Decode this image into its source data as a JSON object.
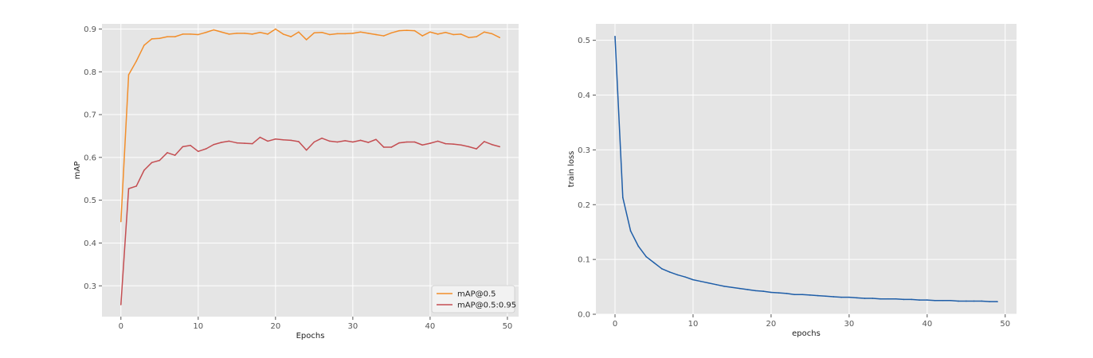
{
  "chart_data": [
    {
      "type": "line",
      "title": "",
      "xlabel": "Epochs",
      "ylabel": "mAP",
      "xlim": [
        -2.45,
        51.45
      ],
      "ylim": [
        0.228,
        0.912
      ],
      "xticks": [
        0,
        10,
        20,
        30,
        40,
        50
      ],
      "yticks": [
        0.3,
        0.4,
        0.5,
        0.6,
        0.7,
        0.8,
        0.9
      ],
      "grid": true,
      "legend_position": "lower-right",
      "series": [
        {
          "name": "mAP@0.5",
          "color": "#f28e2b",
          "x": [
            0,
            1,
            2,
            3,
            4,
            5,
            6,
            7,
            8,
            9,
            10,
            11,
            12,
            13,
            14,
            15,
            16,
            17,
            18,
            19,
            20,
            21,
            22,
            23,
            24,
            25,
            26,
            27,
            28,
            29,
            30,
            31,
            32,
            33,
            34,
            35,
            36,
            37,
            38,
            39,
            40,
            41,
            42,
            43,
            44,
            45,
            46,
            47,
            48,
            49
          ],
          "y": [
            0.45,
            0.793,
            0.825,
            0.862,
            0.877,
            0.878,
            0.882,
            0.882,
            0.888,
            0.888,
            0.887,
            0.892,
            0.898,
            0.893,
            0.888,
            0.89,
            0.89,
            0.888,
            0.892,
            0.888,
            0.9,
            0.888,
            0.882,
            0.893,
            0.875,
            0.891,
            0.892,
            0.887,
            0.889,
            0.889,
            0.89,
            0.893,
            0.89,
            0.887,
            0.884,
            0.891,
            0.896,
            0.897,
            0.896,
            0.884,
            0.893,
            0.888,
            0.892,
            0.887,
            0.888,
            0.88,
            0.882,
            0.893,
            0.889,
            0.88
          ]
        },
        {
          "name": "mAP@0.5:0.95",
          "color": "#c44e52",
          "x": [
            0,
            1,
            2,
            3,
            4,
            5,
            6,
            7,
            8,
            9,
            10,
            11,
            12,
            13,
            14,
            15,
            16,
            17,
            18,
            19,
            20,
            21,
            22,
            23,
            24,
            25,
            26,
            27,
            28,
            29,
            30,
            31,
            32,
            33,
            34,
            35,
            36,
            37,
            38,
            39,
            40,
            41,
            42,
            43,
            44,
            45,
            46,
            47,
            48,
            49
          ],
          "y": [
            0.256,
            0.527,
            0.533,
            0.57,
            0.588,
            0.593,
            0.611,
            0.605,
            0.625,
            0.628,
            0.614,
            0.62,
            0.63,
            0.635,
            0.638,
            0.634,
            0.633,
            0.632,
            0.647,
            0.638,
            0.643,
            0.641,
            0.64,
            0.637,
            0.617,
            0.636,
            0.645,
            0.638,
            0.636,
            0.639,
            0.636,
            0.64,
            0.635,
            0.642,
            0.624,
            0.624,
            0.634,
            0.636,
            0.636,
            0.629,
            0.633,
            0.638,
            0.632,
            0.631,
            0.629,
            0.625,
            0.62,
            0.637,
            0.63,
            0.625
          ]
        }
      ]
    },
    {
      "type": "line",
      "title": "",
      "xlabel": "epochs",
      "ylabel": "train loss",
      "xlim": [
        -2.45,
        51.45
      ],
      "ylim": [
        0.0,
        0.53
      ],
      "xticks": [
        0,
        10,
        20,
        30,
        40,
        50
      ],
      "yticks": [
        0.0,
        0.1,
        0.2,
        0.3,
        0.4,
        0.5
      ],
      "grid": true,
      "legend_position": "none",
      "series": [
        {
          "color": "#1f5ea8",
          "x": [
            0,
            1,
            2,
            3,
            4,
            5,
            6,
            7,
            8,
            9,
            10,
            11,
            12,
            13,
            14,
            15,
            16,
            17,
            18,
            19,
            20,
            21,
            22,
            23,
            24,
            25,
            26,
            27,
            28,
            29,
            30,
            31,
            32,
            33,
            34,
            35,
            36,
            37,
            38,
            39,
            40,
            41,
            42,
            43,
            44,
            45,
            46,
            47,
            48,
            49
          ],
          "y": [
            0.507,
            0.213,
            0.152,
            0.124,
            0.105,
            0.094,
            0.083,
            0.077,
            0.072,
            0.068,
            0.063,
            0.06,
            0.057,
            0.054,
            0.051,
            0.049,
            0.047,
            0.045,
            0.043,
            0.042,
            0.04,
            0.039,
            0.038,
            0.036,
            0.036,
            0.035,
            0.034,
            0.033,
            0.032,
            0.031,
            0.031,
            0.03,
            0.029,
            0.029,
            0.028,
            0.028,
            0.028,
            0.027,
            0.027,
            0.026,
            0.026,
            0.025,
            0.025,
            0.025,
            0.024,
            0.024,
            0.024,
            0.024,
            0.023,
            0.023
          ]
        }
      ]
    }
  ]
}
